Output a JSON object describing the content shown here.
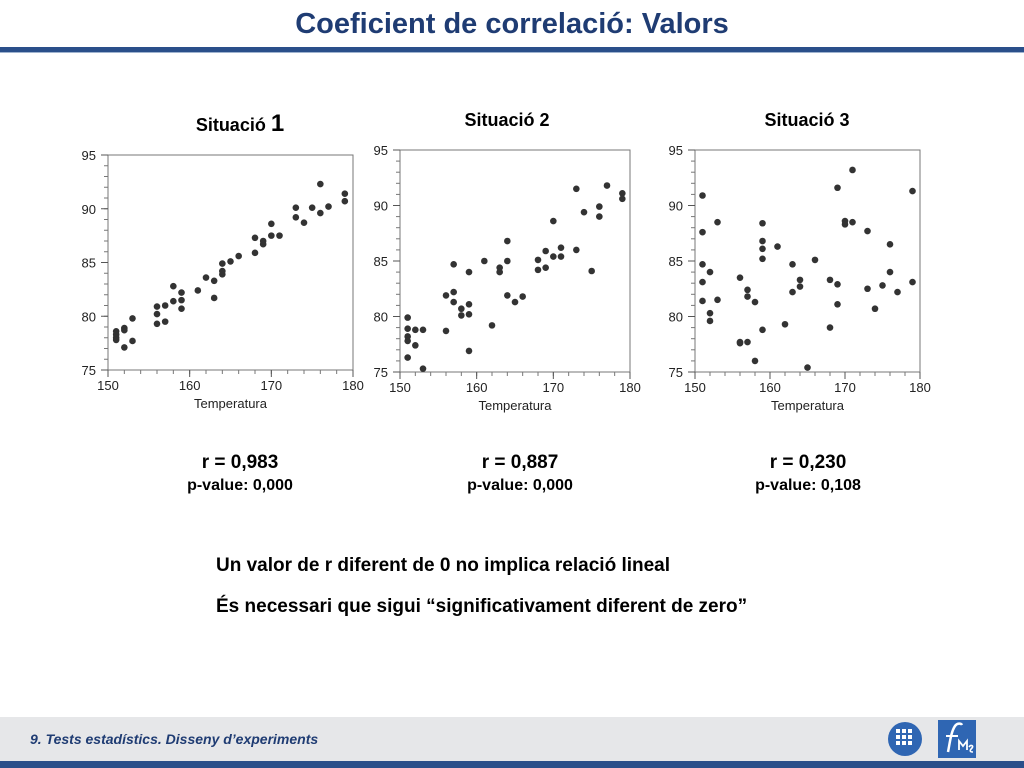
{
  "slide": {
    "title": "Coeficient de correlació: Valors",
    "message_line1": "Un valor de r diferent de 0 no implica relació lineal",
    "message_line2": "És necessari que sigui “significativament diferent de zero”",
    "footer": "9. Tests estadístics. Disseny d’experiments"
  },
  "plots": [
    {
      "title_text": "Situació ",
      "title_num": "1",
      "r_text": "r = 0,983",
      "p_text": "p-value: 0,000"
    },
    {
      "title_text": "Situació ",
      "title_num": "2",
      "r_text": "r = 0,887",
      "p_text": "p-value: 0,000"
    },
    {
      "title_text": "Situació ",
      "title_num": "3",
      "r_text": "r = 0,230",
      "p_text": "p-value: 0,108"
    }
  ],
  "chart_data": [
    {
      "type": "scatter",
      "title": "Situació 1",
      "xlabel": "Temperatura",
      "ylabel": "",
      "xlim": [
        150,
        180
      ],
      "ylim": [
        75,
        95
      ],
      "xticks": [
        150,
        160,
        170,
        180
      ],
      "yticks": [
        75,
        80,
        85,
        90,
        95
      ],
      "point_color": "#333333",
      "points": [
        [
          151,
          78.0
        ],
        [
          151,
          78.3
        ],
        [
          151,
          78.6
        ],
        [
          151,
          77.8
        ],
        [
          152,
          78.9
        ],
        [
          152,
          78.7
        ],
        [
          152,
          77.1
        ],
        [
          153,
          77.7
        ],
        [
          153,
          79.8
        ],
        [
          156,
          80.2
        ],
        [
          156,
          80.9
        ],
        [
          157,
          81.0
        ],
        [
          157,
          79.5
        ],
        [
          156,
          79.3
        ],
        [
          158,
          81.4
        ],
        [
          158,
          82.8
        ],
        [
          159,
          82.2
        ],
        [
          159,
          81.5
        ],
        [
          159,
          80.7
        ],
        [
          161,
          82.4
        ],
        [
          162,
          83.6
        ],
        [
          163,
          81.7
        ],
        [
          163,
          83.3
        ],
        [
          164,
          83.9
        ],
        [
          164,
          84.2
        ],
        [
          164,
          84.9
        ],
        [
          165,
          85.1
        ],
        [
          166,
          85.6
        ],
        [
          168,
          87.3
        ],
        [
          168,
          85.9
        ],
        [
          169,
          86.7
        ],
        [
          169,
          87.0
        ],
        [
          170,
          87.5
        ],
        [
          170,
          88.6
        ],
        [
          171,
          87.5
        ],
        [
          173,
          90.1
        ],
        [
          173,
          89.2
        ],
        [
          174,
          88.7
        ],
        [
          175,
          90.1
        ],
        [
          176,
          92.3
        ],
        [
          176,
          89.6
        ],
        [
          177,
          90.2
        ],
        [
          179,
          91.4
        ],
        [
          179,
          90.7
        ]
      ]
    },
    {
      "type": "scatter",
      "title": "Situació 2",
      "xlabel": "Temperatura",
      "ylabel": "",
      "xlim": [
        150,
        180
      ],
      "ylim": [
        75,
        95
      ],
      "xticks": [
        150,
        160,
        170,
        180
      ],
      "yticks": [
        75,
        80,
        85,
        90,
        95
      ],
      "point_color": "#333333",
      "points": [
        [
          151,
          79.9
        ],
        [
          151,
          78.9
        ],
        [
          151,
          78.2
        ],
        [
          151,
          77.8
        ],
        [
          151,
          76.3
        ],
        [
          152,
          78.8
        ],
        [
          152,
          77.4
        ],
        [
          153,
          78.8
        ],
        [
          153,
          75.3
        ],
        [
          156,
          78.7
        ],
        [
          156,
          81.9
        ],
        [
          157,
          84.7
        ],
        [
          157,
          82.2
        ],
        [
          157,
          81.3
        ],
        [
          158,
          80.7
        ],
        [
          158,
          80.1
        ],
        [
          159,
          84.0
        ],
        [
          159,
          80.2
        ],
        [
          159,
          81.1
        ],
        [
          159,
          76.9
        ],
        [
          161,
          85.0
        ],
        [
          162,
          79.2
        ],
        [
          163,
          84.0
        ],
        [
          163,
          84.4
        ],
        [
          164,
          81.9
        ],
        [
          164,
          86.8
        ],
        [
          164,
          85.0
        ],
        [
          165,
          81.3
        ],
        [
          166,
          81.8
        ],
        [
          168,
          84.2
        ],
        [
          168,
          85.1
        ],
        [
          169,
          85.9
        ],
        [
          169,
          84.4
        ],
        [
          170,
          85.4
        ],
        [
          170,
          88.6
        ],
        [
          171,
          86.2
        ],
        [
          171,
          85.4
        ],
        [
          173,
          86.0
        ],
        [
          173,
          91.5
        ],
        [
          174,
          89.4
        ],
        [
          175,
          84.1
        ],
        [
          176,
          89.9
        ],
        [
          176,
          89.0
        ],
        [
          177,
          91.8
        ],
        [
          179,
          91.1
        ],
        [
          179,
          90.6
        ]
      ]
    },
    {
      "type": "scatter",
      "title": "Situació 3",
      "xlabel": "Temperatura",
      "ylabel": "",
      "xlim": [
        150,
        180
      ],
      "ylim": [
        75,
        95
      ],
      "xticks": [
        150,
        160,
        170,
        180
      ],
      "yticks": [
        75,
        80,
        85,
        90,
        95
      ],
      "point_color": "#333333",
      "points": [
        [
          151,
          90.9
        ],
        [
          151,
          87.6
        ],
        [
          151,
          84.7
        ],
        [
          151,
          83.1
        ],
        [
          151,
          81.4
        ],
        [
          152,
          84.0
        ],
        [
          152,
          80.3
        ],
        [
          152,
          79.6
        ],
        [
          153,
          81.5
        ],
        [
          153,
          88.5
        ],
        [
          156,
          83.5
        ],
        [
          156,
          77.6
        ],
        [
          156,
          77.7
        ],
        [
          157,
          82.4
        ],
        [
          157,
          81.8
        ],
        [
          157,
          77.7
        ],
        [
          158,
          81.3
        ],
        [
          158,
          76.0
        ],
        [
          159,
          86.8
        ],
        [
          159,
          86.1
        ],
        [
          159,
          88.4
        ],
        [
          159,
          85.2
        ],
        [
          159,
          78.8
        ],
        [
          161,
          86.3
        ],
        [
          162,
          79.3
        ],
        [
          163,
          82.2
        ],
        [
          163,
          84.7
        ],
        [
          164,
          83.3
        ],
        [
          164,
          82.7
        ],
        [
          165,
          75.4
        ],
        [
          166,
          85.1
        ],
        [
          168,
          79.0
        ],
        [
          168,
          83.3
        ],
        [
          169,
          91.6
        ],
        [
          169,
          82.9
        ],
        [
          169,
          81.1
        ],
        [
          170,
          88.6
        ],
        [
          170,
          88.3
        ],
        [
          171,
          93.2
        ],
        [
          171,
          88.5
        ],
        [
          173,
          87.7
        ],
        [
          173,
          82.5
        ],
        [
          174,
          80.7
        ],
        [
          175,
          82.8
        ],
        [
          176,
          86.5
        ],
        [
          176,
          84.0
        ],
        [
          177,
          82.2
        ],
        [
          179,
          91.3
        ],
        [
          179,
          83.1
        ]
      ]
    }
  ]
}
